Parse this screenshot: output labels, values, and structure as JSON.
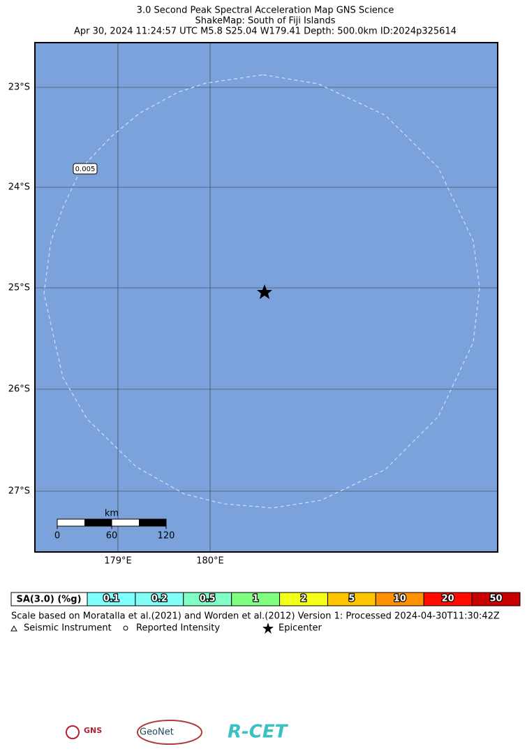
{
  "header": {
    "title": "3.0 Second Peak Spectral Acceleration Map GNS Science",
    "subtitle": "ShakeMap: South of Fiji Islands",
    "event": "Apr 30, 2024 11:24:57 UTC M5.8 S25.04 W179.41 Depth: 500.0km ID:2024p325614"
  },
  "map": {
    "lat_labels": [
      "23°S",
      "24°S",
      "25°S",
      "26°S",
      "27°S"
    ],
    "lon_labels": [
      "179°E",
      "180°E"
    ],
    "contour_label": "0.005",
    "scale_bar": {
      "unit": "km",
      "labels": [
        "0",
        "60",
        "120"
      ]
    }
  },
  "legend": {
    "title": "SA(3.0) (%g)",
    "cells": [
      {
        "label": "0.1",
        "color": "#80ffff"
      },
      {
        "label": "0.2",
        "color": "#7ffff8"
      },
      {
        "label": "0.5",
        "color": "#7fffc6"
      },
      {
        "label": "1",
        "color": "#7fff7f"
      },
      {
        "label": "2",
        "color": "#f4ff1a"
      },
      {
        "label": "5",
        "color": "#ffc400"
      },
      {
        "label": "10",
        "color": "#ff9000"
      },
      {
        "label": "20",
        "color": "#ff0c00"
      },
      {
        "label": "50",
        "color": "#c80000"
      }
    ],
    "note": "Scale based on Moratalla et al.(2021) and Worden et al.(2012)   Version 1: Processed 2024-04-30T11:30:42Z",
    "symbols": [
      "Seismic Instrument",
      "Reported Intensity",
      "Epicenter"
    ]
  },
  "logos": [
    "GNS",
    "GeoNet",
    "R-CET"
  ]
}
